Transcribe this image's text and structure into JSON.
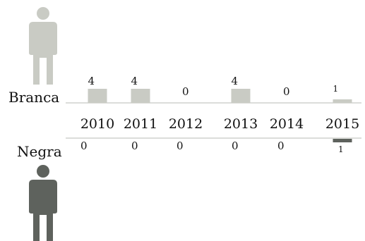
{
  "chart_data": {
    "type": "bar",
    "categories": [
      "2010",
      "2011",
      "2012",
      "2013",
      "2014",
      "2015"
    ],
    "series": [
      {
        "name": "Branca",
        "values": [
          4,
          4,
          0,
          4,
          0,
          1
        ]
      },
      {
        "name": "Negra",
        "values": [
          0,
          0,
          0,
          0,
          0,
          1
        ]
      }
    ],
    "ylim": [
      0,
      4
    ]
  },
  "colors": {
    "branca": "#c9cbc4",
    "negra": "#5e625d",
    "axis": "#b9bbb5"
  },
  "icons": {
    "top": "person-light-icon",
    "bottom": "person-dark-icon"
  }
}
